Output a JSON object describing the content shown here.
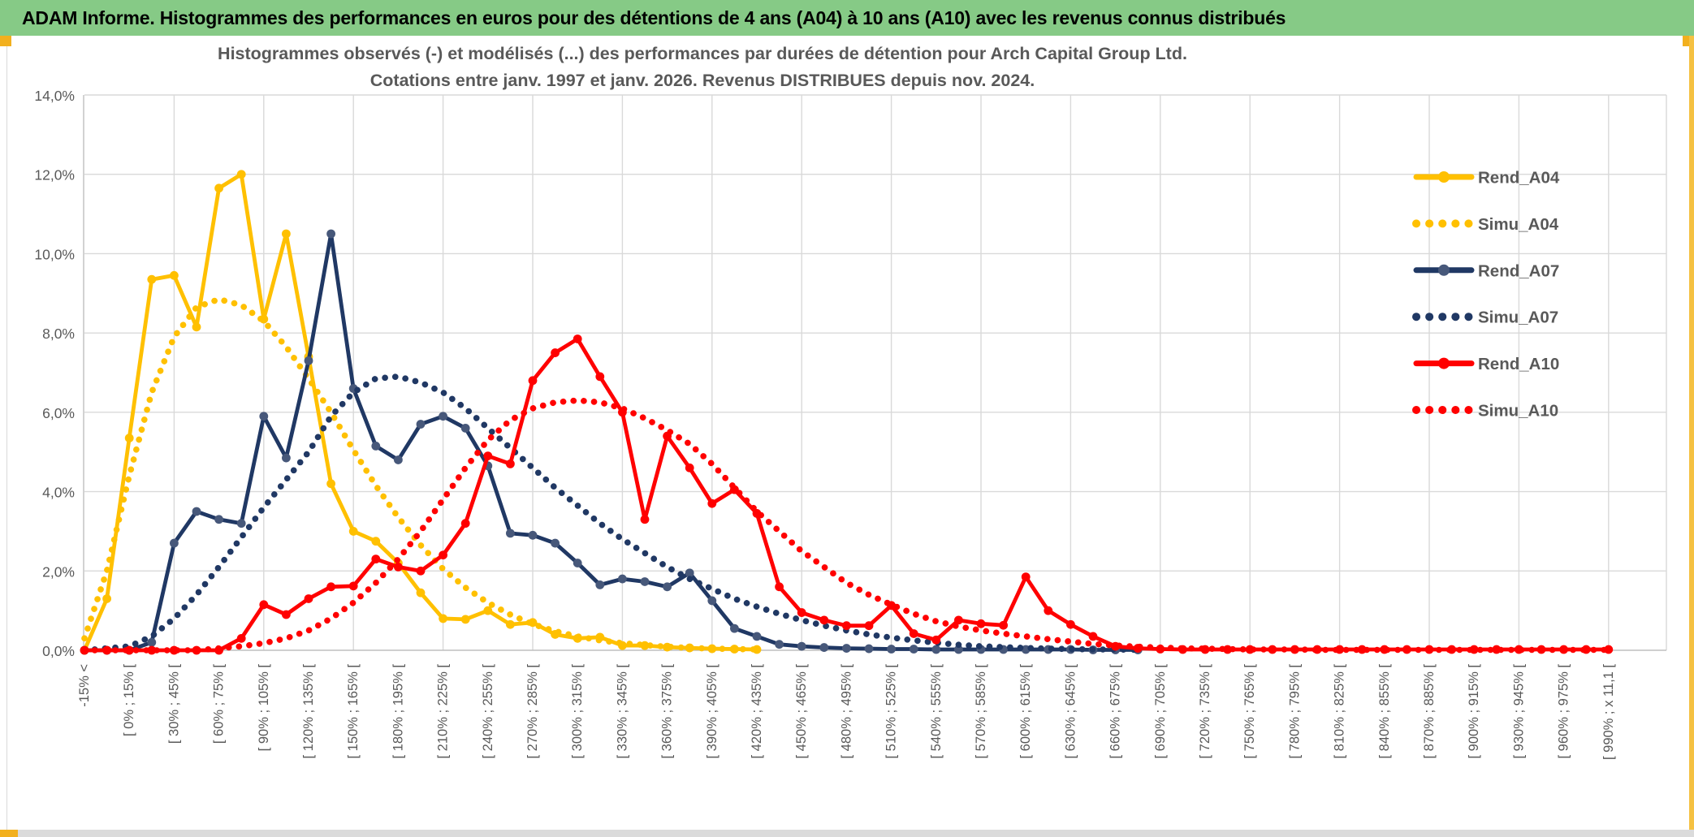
{
  "banner": {
    "title": "ADAM Informe. Histogrammes des performances en euros pour des détentions de 4 ans (A04) à 10 ans (A10) avec les revenus connus distribués"
  },
  "chart_data": {
    "type": "line",
    "title_line1": "Histogrammes observés (-) et modélisés (...) des performances par durées de détention pour Arch Capital Group Ltd.",
    "title_line2": "Cotations entre janv. 1997 et janv. 2026. Revenus DISTRIBUES depuis nov. 2024.",
    "ylim": [
      0,
      14
    ],
    "ytick_step": 2,
    "ytick_labels": [
      "0,0%",
      "2,0%",
      "4,0%",
      "6,0%",
      "8,0%",
      "10,0%",
      "12,0%",
      "14,0%"
    ],
    "grid": true,
    "legend_position": "right",
    "x_bin_count": 69,
    "x_labels_every": 2,
    "xtick_labels": [
      "-15% <",
      "[ 0% ; 15% [",
      "[ 30% ; 45% [",
      "[ 60% ; 75% [",
      "[ 90% ; 105% [",
      "[ 120% ; 135% [",
      "[ 150% ; 165% [",
      "[ 180% ; 195% [",
      "[ 210% ; 225% [",
      "[ 240% ; 255% [",
      "[ 270% ; 285% [",
      "[ 300% ; 315% [",
      "[ 330% ; 345% [",
      "[ 360% ; 375% [",
      "[ 390% ; 405% [",
      "[ 420% ; 435% [",
      "[ 450% ; 465% [",
      "[ 480% ; 495% [",
      "[ 510% ; 525% [",
      "[ 540% ; 555% [",
      "[ 570% ; 585% [",
      "[ 600% ; 615% [",
      "[ 630% ; 645% [",
      "[ 660% ; 675% [",
      "[ 690% ; 705% [",
      "[ 720% ; 735% [",
      "[ 750% ; 765% [",
      "[ 780% ; 795% [",
      "[ 810% ; 825% [",
      "[ 840% ; 855% [",
      "[ 870% ; 885% [",
      "[ 900% ; 915% [",
      "[ 930% ; 945% [",
      "[ 960% ; 975% [",
      "[ 990% ; x 11,1 ["
    ],
    "series": [
      {
        "name": "Rend_A04",
        "color": "#FFC000",
        "style": "solid",
        "marker": true,
        "marker_color": "#FFC000",
        "values": [
          0,
          1.3,
          5.35,
          9.35,
          9.45,
          8.15,
          11.65,
          12,
          8.35,
          10.5,
          7.4,
          4.2,
          3,
          2.75,
          2.2,
          1.45,
          0.8,
          0.78,
          1,
          0.65,
          0.7,
          0.4,
          0.3,
          0.33,
          0.12,
          0.12,
          0.08,
          0.06,
          0.04,
          0.03,
          0.02
        ]
      },
      {
        "name": "Simu_A04",
        "color": "#FFC000",
        "style": "dotted",
        "marker": false,
        "values": [
          0.3,
          2,
          4.4,
          6.5,
          7.9,
          8.65,
          8.85,
          8.7,
          8.3,
          7.65,
          6.85,
          6,
          5.05,
          4.15,
          3.35,
          2.65,
          2.05,
          1.58,
          1.2,
          0.9,
          0.66,
          0.48,
          0.35,
          0.25,
          0.18,
          0.13,
          0.09,
          0.06,
          0.04,
          0.03,
          0.02
        ]
      },
      {
        "name": "Rend_A07",
        "color": "#203864",
        "style": "solid",
        "marker": true,
        "marker_color": "#47587A",
        "values": [
          0,
          0,
          0,
          0.2,
          2.7,
          3.5,
          3.3,
          3.2,
          5.9,
          4.85,
          7.3,
          10.5,
          6.6,
          5.15,
          4.8,
          5.7,
          5.9,
          5.6,
          4.65,
          2.95,
          2.9,
          2.7,
          2.2,
          1.65,
          1.8,
          1.73,
          1.6,
          1.95,
          1.25,
          0.55,
          0.35,
          0.15,
          0.1,
          0.07,
          0.05,
          0.04,
          0.03,
          0.03,
          0.02,
          0.02,
          0.02,
          0.02,
          0.02,
          0.02,
          0.02,
          0.01,
          0.01,
          0.01
        ]
      },
      {
        "name": "Simu_A07",
        "color": "#203864",
        "style": "dotted",
        "marker": false,
        "values": [
          0,
          0.05,
          0.1,
          0.35,
          0.8,
          1.4,
          2.1,
          2.85,
          3.6,
          4.3,
          5,
          5.9,
          6.5,
          6.85,
          6.9,
          6.75,
          6.5,
          6.1,
          5.6,
          5.1,
          4.6,
          4.1,
          3.65,
          3.2,
          2.8,
          2.45,
          2.1,
          1.8,
          1.55,
          1.3,
          1.1,
          0.92,
          0.76,
          0.62,
          0.5,
          0.4,
          0.32,
          0.25,
          0.19,
          0.14,
          0.1,
          0.08,
          0.06,
          0.04,
          0.03,
          0.02,
          0.02,
          0.01
        ]
      },
      {
        "name": "Rend_A10",
        "color": "#FF0000",
        "style": "solid",
        "marker": true,
        "marker_color": "#FF0000",
        "values": [
          0,
          0,
          0,
          0,
          0,
          0,
          0,
          0.3,
          1.15,
          0.9,
          1.3,
          1.6,
          1.62,
          2.3,
          2.1,
          2,
          2.4,
          3.2,
          4.9,
          4.7,
          6.8,
          7.5,
          7.85,
          6.9,
          6,
          3.3,
          5.4,
          4.6,
          3.7,
          4.05,
          3.45,
          1.6,
          0.95,
          0.76,
          0.62,
          0.62,
          1.13,
          0.42,
          0.26,
          0.76,
          0.67,
          0.63,
          1.85,
          1,
          0.65,
          0.35,
          0.1,
          0.05,
          0.03,
          0.02,
          0.02,
          0.02,
          0.02,
          0.02,
          0.02,
          0.02,
          0.02,
          0.02,
          0.02,
          0.02,
          0.02,
          0.02,
          0.02,
          0.02,
          0.02,
          0.02,
          0.02,
          0.02,
          0.02
        ]
      },
      {
        "name": "Simu_A10",
        "color": "#FF0000",
        "style": "dotted",
        "marker": false,
        "values": [
          0,
          0,
          0,
          0,
          0,
          0,
          0.05,
          0.1,
          0.18,
          0.3,
          0.5,
          0.8,
          1.2,
          1.7,
          2.3,
          3,
          3.8,
          4.6,
          5.3,
          5.8,
          6.1,
          6.25,
          6.3,
          6.25,
          6.1,
          5.85,
          5.55,
          5.2,
          4.7,
          4.1,
          3.5,
          3,
          2.5,
          2.1,
          1.7,
          1.4,
          1.15,
          0.92,
          0.73,
          0.6,
          0.5,
          0.42,
          0.35,
          0.28,
          0.22,
          0.16,
          0.12,
          0.09,
          0.07,
          0.05,
          0.04,
          0.03,
          0.02,
          0.02,
          0.02,
          0.01,
          0.01,
          0.01,
          0.01,
          0.01,
          0.01,
          0.01,
          0.01,
          0.01,
          0.01,
          0.01,
          0.01,
          0.01,
          0.01
        ]
      }
    ]
  },
  "colors": {
    "banner_green": "#86CA86",
    "accent_yellow": "#F2B01E",
    "grid_grey": "#D9D9D9",
    "axis_grey": "#BFBFBF",
    "text_grey": "#595959",
    "band_grey": "#DBDBDB"
  }
}
